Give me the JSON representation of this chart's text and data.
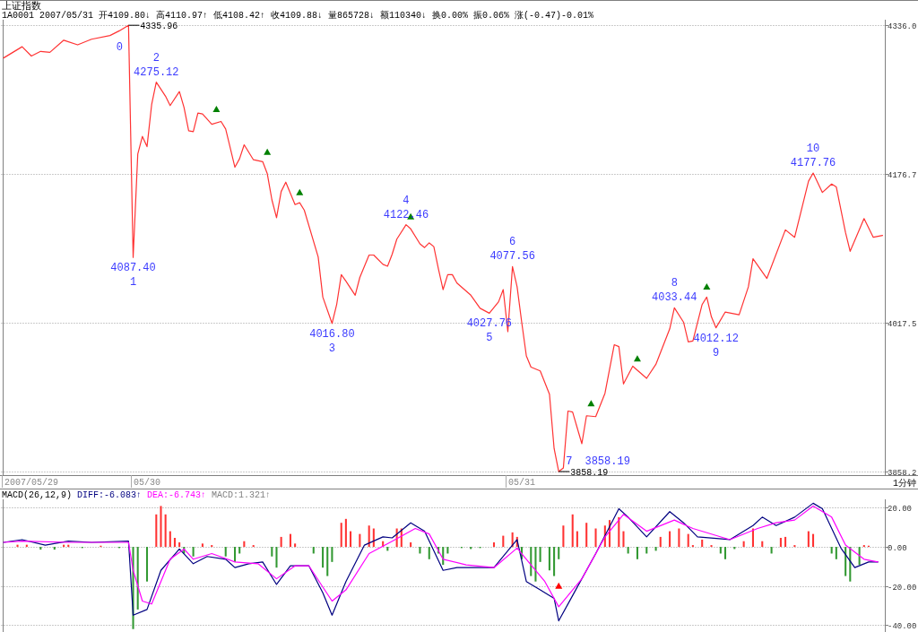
{
  "chart_data": [
    {
      "type": "line",
      "title": "上证指数",
      "subtitle": "1A0001 2007/05/31 开4109.80↓ 高4110.97↑ 低4108.42↑ 收4109.88↓ 量865728↓ 额110340↓ 换0.00% 振0.06% 涨(-0.47)-0.01%",
      "grid": "y",
      "ylim": [
        3854.4,
        4341.9
      ],
      "categories": [
        null,
        null,
        null,
        null,
        null,
        null,
        "2007/05/29",
        null,
        null,
        null,
        null,
        null,
        null,
        null,
        null,
        null,
        null,
        null,
        null,
        null,
        null,
        null,
        null,
        null,
        null,
        null,
        null,
        null,
        null,
        null,
        null,
        "05/30",
        null,
        null,
        null,
        null,
        null,
        null,
        null,
        null,
        null,
        null,
        null,
        null,
        null,
        null,
        null,
        null,
        null,
        null,
        null,
        null,
        null,
        null,
        null,
        null,
        null,
        null,
        null,
        null,
        null,
        null,
        null,
        null,
        null,
        null,
        null,
        null,
        null,
        null,
        null,
        null,
        null,
        null,
        null,
        null,
        null,
        null,
        null,
        null,
        null,
        null,
        null,
        null,
        null,
        null,
        null,
        null,
        null,
        null,
        null,
        null,
        null,
        null,
        null,
        null,
        null,
        null,
        null,
        null,
        null,
        null,
        null,
        null,
        null,
        null,
        null,
        null,
        null,
        null,
        null,
        null,
        "05/31",
        null,
        null,
        null,
        null,
        null,
        null,
        null,
        null,
        null,
        null,
        null,
        null,
        null,
        null,
        null,
        null,
        null,
        null,
        null,
        null,
        null,
        null,
        null,
        null,
        null,
        null,
        null,
        null,
        null,
        null,
        null,
        null,
        null,
        null,
        null,
        null,
        null,
        null,
        null,
        null,
        null,
        null,
        null,
        null,
        null,
        null,
        null,
        null,
        null,
        null,
        null,
        null,
        null,
        null,
        null,
        null,
        null,
        null,
        null,
        null,
        null,
        null,
        null,
        null,
        null,
        null,
        null,
        null,
        null,
        null,
        null,
        null,
        null,
        null,
        null,
        null,
        null,
        null
      ],
      "yticks": [
        {
          "value": 4336,
          "label": "4336.0"
        },
        {
          "value": 4176.7,
          "label": "4176.7"
        },
        {
          "value": 4017.5,
          "label": "4017.5"
        },
        {
          "value": 3858.2,
          "label": "3858.2"
        }
      ],
      "annotations": [
        "1分钟",
        "0",
        "1",
        "2",
        "3",
        "4",
        "5",
        "6",
        "7",
        "8",
        "9",
        "10",
        "3858.19"
      ],
      "series": [
        {
          "color": "#ff3333",
          "line_style": "solid",
          "values": [
            4301,
            null,
            null,
            null,
            4313,
            null,
            4303,
            null,
            4308,
            null,
            4307,
            null,
            null,
            4320,
            null,
            null,
            4315,
            null,
            null,
            4321,
            null,
            null,
            null,
            4325,
            null,
            4330,
            null,
            4335.96,
            4087.4,
            4198,
            4217,
            4206,
            4251,
            4275.12,
            null,
            4260,
            4250,
            null,
            4265,
            4248,
            4223,
            4222,
            4242,
            4241,
            null,
            4230,
            null,
            4233,
            4225,
            null,
            4184,
            4193,
            4208,
            null,
            4192,
            null,
            4190,
            4177,
            4149,
            4130,
            4158,
            4168,
            null,
            4144,
            4146,
            4138,
            null,
            null,
            4088,
            4045,
            null,
            4016.8,
            4037,
            4069,
            4062,
            null,
            4047,
            4066,
            null,
            4090,
            4090,
            null,
            4080,
            4078,
            4091,
            4107,
            null,
            4122.46,
            4118,
            null,
            4102,
            4098,
            4103,
            4099,
            4075,
            4053,
            4069,
            4069,
            4060,
            null,
            null,
            4047,
            null,
            4033,
            null,
            4027.76,
            null,
            4040,
            4053,
            4008,
            4077.56,
            4056,
            4018,
            3982,
            3970,
            null,
            3966,
            null,
            3941,
            3883,
            3858.19,
            3862,
            3923,
            3922,
            null,
            3888,
            3918,
            null,
            3917,
            null,
            3942,
            null,
            3994,
            3992,
            3952,
            null,
            3971,
            null,
            null,
            3958,
            null,
            3973,
            null,
            null,
            4011,
            4033.44,
            null,
            4018,
            3997,
            3998,
            null,
            4037,
            4045,
            4024,
            4012.12,
            null,
            4029,
            null,
            null,
            4026,
            null,
            4056,
            4086,
            null,
            null,
            4065,
            null,
            null,
            null,
            4117,
            null,
            4109,
            null,
            null,
            4169,
            4177.76,
            null,
            4157,
            null,
            4166,
            4163,
            null,
            4114,
            4094,
            null,
            null,
            4129,
            null,
            4109,
            null,
            4111
          ],
          "value_labels": [
            null,
            null,
            null,
            null,
            null,
            null,
            null,
            null,
            null,
            null,
            null,
            null,
            null,
            null,
            null,
            null,
            null,
            null,
            null,
            null,
            null,
            null,
            null,
            null,
            null,
            null,
            null,
            "4335.96",
            "4087.40",
            null,
            null,
            null,
            null,
            "4275.12",
            null,
            null,
            null,
            null,
            null,
            null,
            null,
            null,
            null,
            null,
            null,
            null,
            null,
            null,
            null,
            null,
            null,
            null,
            null,
            null,
            null,
            null,
            null,
            null,
            null,
            null,
            null,
            null,
            null,
            null,
            null,
            null,
            null,
            null,
            null,
            null,
            null,
            "4016.80",
            null,
            null,
            null,
            null,
            null,
            null,
            null,
            null,
            null,
            null,
            null,
            null,
            null,
            null,
            null,
            "4122.46",
            null,
            null,
            null,
            null,
            null,
            null,
            null,
            null,
            null,
            null,
            null,
            null,
            null,
            null,
            null,
            null,
            null,
            "4027.76",
            null,
            null,
            null,
            null,
            "4077.56",
            null,
            null,
            null,
            null,
            null,
            null,
            null,
            null,
            null,
            "3858.19",
            null,
            null,
            null,
            null,
            null,
            null,
            null,
            null,
            null,
            null,
            null,
            null,
            null,
            null,
            null,
            null,
            null,
            null,
            null,
            null,
            null,
            null,
            null,
            null,
            "4033.44",
            null,
            null,
            null,
            null,
            null,
            null,
            null,
            null,
            "4012.12",
            null,
            null,
            null,
            null,
            null,
            null,
            null,
            null,
            null,
            null,
            null,
            null,
            null,
            null,
            null,
            null,
            null,
            null,
            null,
            null,
            "4177.76",
            null,
            null,
            null,
            null,
            null,
            null,
            null,
            null,
            null,
            null,
            null,
            null,
            null,
            null,
            null
          ]
        },
        {
          "type": "scatter",
          "color": "#008000",
          "marker": "triangle",
          "values": [
            null,
            null,
            null,
            null,
            null,
            null,
            null,
            null,
            null,
            null,
            null,
            null,
            null,
            null,
            null,
            null,
            null,
            null,
            null,
            null,
            null,
            null,
            null,
            null,
            null,
            null,
            null,
            null,
            null,
            null,
            null,
            null,
            null,
            null,
            null,
            null,
            null,
            null,
            null,
            null,
            null,
            null,
            null,
            null,
            null,
            null,
            4246,
            null,
            null,
            null,
            null,
            null,
            null,
            null,
            null,
            null,
            null,
            4200,
            null,
            null,
            null,
            null,
            null,
            null,
            4157,
            null,
            null,
            null,
            null,
            null,
            null,
            null,
            null,
            null,
            null,
            null,
            null,
            null,
            null,
            null,
            null,
            null,
            null,
            null,
            null,
            null,
            null,
            null,
            4131,
            null,
            null,
            null,
            null,
            null,
            null,
            null,
            null,
            null,
            null,
            null,
            null,
            null,
            null,
            null,
            null,
            null,
            null,
            null,
            null,
            null,
            null,
            null,
            null,
            null,
            null,
            null,
            null,
            null,
            null,
            null,
            null,
            null,
            null,
            null,
            null,
            null,
            null,
            3931,
            null,
            null,
            null,
            null,
            null,
            null,
            null,
            null,
            null,
            3979,
            null,
            null,
            null,
            null,
            null,
            null,
            null,
            null,
            null,
            null,
            null,
            null,
            null,
            null,
            4056,
            null,
            null,
            null,
            null,
            null,
            null,
            null,
            null,
            null,
            null,
            null,
            null,
            null,
            null,
            null,
            null,
            null,
            null,
            null,
            null,
            null,
            null,
            null,
            null,
            null,
            null,
            null,
            null,
            null,
            null,
            null,
            null,
            null,
            null,
            null,
            null,
            null,
            null
          ]
        }
      ]
    },
    {
      "type": "bar",
      "title": "MACD(26,12,9)",
      "legend": "top left",
      "grid": "y",
      "tick_labels": "y",
      "ylim": [
        -43.5,
        24.3
      ],
      "categories": [
        null,
        null,
        null,
        null,
        null,
        null,
        null,
        null,
        null,
        null,
        null,
        null,
        null,
        null,
        null,
        null,
        null,
        null,
        null,
        null,
        null,
        null,
        null,
        null,
        null,
        null,
        null,
        null,
        null,
        null,
        null,
        null,
        null,
        null,
        null,
        null,
        null,
        null,
        null,
        null,
        null,
        null,
        null,
        null,
        null,
        null,
        null,
        null,
        null,
        null,
        null,
        null,
        null,
        null,
        null,
        null,
        null,
        null,
        null,
        null,
        null,
        null,
        null,
        null,
        null,
        null,
        null,
        null,
        null,
        null,
        null,
        null,
        null,
        null,
        null,
        null,
        null,
        null,
        null,
        null,
        null,
        null,
        null,
        null,
        null,
        null,
        null,
        null,
        null,
        null,
        null,
        null,
        null,
        null,
        null,
        null,
        null,
        null,
        null,
        null,
        null,
        null,
        null,
        null,
        null,
        null,
        null,
        null,
        null,
        null,
        null,
        null,
        null,
        null,
        null,
        null,
        null,
        null,
        null,
        null,
        null,
        null,
        null,
        null,
        null,
        null,
        null,
        null,
        null,
        null,
        null,
        null,
        null,
        null,
        null,
        null,
        null,
        null,
        null,
        null,
        null,
        null,
        null,
        null,
        null,
        null,
        null,
        null,
        null,
        null,
        null,
        null,
        null,
        null,
        null,
        null,
        null,
        null,
        null,
        null,
        null,
        null,
        null,
        null,
        null,
        null,
        null,
        null,
        null,
        null,
        null,
        null,
        null,
        null,
        null,
        null,
        null,
        null,
        null,
        null,
        null,
        null,
        null,
        null,
        null,
        null,
        null,
        null,
        null,
        null,
        null
      ],
      "yticks": [
        {
          "value": 20,
          "label": "20.00"
        },
        {
          "value": 0,
          "label": "0.00"
        },
        {
          "value": -20,
          "label": "-20.00"
        },
        {
          "value": -40,
          "label": "-40.00"
        }
      ],
      "annotations": [
        "MACD:1.321↑"
      ],
      "series": [
        {
          "color": "#ff3333",
          "values": [
            null,
            null,
            null,
            1.1,
            null,
            1.1,
            null,
            null,
            null,
            null,
            null,
            null,
            null,
            1.1,
            1.1,
            null,
            null,
            null,
            null,
            null,
            null,
            0.6,
            null,
            null,
            null,
            null,
            null,
            null,
            null,
            null,
            null,
            null,
            null,
            16.6,
            20.9,
            16.6,
            8,
            4.6,
            2.3,
            null,
            null,
            null,
            null,
            1.7,
            null,
            0.9,
            null,
            null,
            null,
            null,
            null,
            null,
            2.9,
            null,
            0.9,
            null,
            null,
            null,
            null,
            null,
            5.1,
            null,
            6.6,
            1.7,
            null,
            null,
            null,
            null,
            null,
            null,
            null,
            null,
            null,
            12.3,
            14.3,
            8,
            null,
            6.6,
            null,
            10.9,
            9.4,
            null,
            2.9,
            null,
            null,
            9.4,
            9.4,
            null,
            2.3,
            null,
            null,
            null,
            null,
            null,
            null,
            null,
            null,
            null,
            null,
            null,
            null,
            null,
            null,
            null,
            null,
            null,
            2.3,
            null,
            5.7,
            null,
            7.4,
            5.1,
            null,
            null,
            null,
            null,
            null,
            null,
            null,
            null,
            null,
            10.9,
            null,
            16.6,
            8,
            null,
            12.3,
            null,
            9.4,
            null,
            10.9,
            13.7,
            null,
            15.2,
            8,
            null,
            null,
            null,
            null,
            null,
            null,
            null,
            5.1,
            null,
            8,
            null,
            9.4,
            null,
            6.6,
            0.9,
            null,
            3.7,
            null,
            0.9,
            null,
            null,
            null,
            null,
            null,
            null,
            2.9,
            null,
            9.4,
            null,
            2.9,
            null,
            null,
            null,
            4.6,
            5.1,
            null,
            0.9,
            null,
            null,
            8,
            6.6,
            null,
            null,
            null,
            null,
            null,
            null,
            null,
            null,
            null,
            null,
            0.9,
            0.6,
            null,
            null,
            null
          ]
        },
        {
          "color": "#339933",
          "values": [
            null,
            null,
            null,
            null,
            null,
            null,
            null,
            null,
            -1.4,
            null,
            null,
            -1.4,
            null,
            null,
            null,
            null,
            null,
            -0.6,
            null,
            null,
            null,
            null,
            null,
            null,
            null,
            -0.6,
            null,
            null,
            -42,
            -32,
            null,
            -17.7,
            null,
            null,
            null,
            null,
            null,
            null,
            null,
            -3.4,
            null,
            -4.9,
            null,
            null,
            null,
            null,
            null,
            null,
            -4.9,
            null,
            -7.7,
            -3.4,
            null,
            null,
            null,
            null,
            null,
            null,
            -4.9,
            -10.6,
            null,
            null,
            null,
            null,
            null,
            null,
            null,
            -3.4,
            null,
            -10.6,
            -14.9,
            -7.7,
            null,
            null,
            null,
            null,
            null,
            null,
            null,
            null,
            null,
            null,
            null,
            -2,
            null,
            null,
            null,
            null,
            null,
            null,
            -3.4,
            null,
            -6.3,
            null,
            -3.4,
            -9.2,
            -3.4,
            null,
            null,
            -0.6,
            null,
            -1.1,
            null,
            -0.6,
            null,
            null,
            null,
            null,
            null,
            null,
            null,
            null,
            -6.3,
            null,
            -14.9,
            -17.7,
            -7.7,
            null,
            -12,
            -14.9,
            -6.3,
            null,
            null,
            null,
            null,
            null,
            null,
            null,
            null,
            null,
            null,
            null,
            null,
            null,
            null,
            -3.4,
            null,
            -6.3,
            null,
            -3.4,
            null,
            -2,
            null,
            null,
            null,
            null,
            null,
            null,
            null,
            null,
            null,
            null,
            null,
            null,
            null,
            -3.4,
            -6.3,
            null,
            -1.1,
            null,
            null,
            null,
            null,
            null,
            null,
            null,
            -3.4,
            null,
            null,
            null,
            null,
            null,
            null,
            null,
            null,
            null,
            null,
            null,
            null,
            -3.4,
            -6.3,
            null,
            -14.9,
            -17.7,
            null,
            -9.2,
            null,
            null,
            null,
            null,
            null
          ]
        },
        {
          "type": "line",
          "name": "DIFF:-6.083↑",
          "color": "#000080",
          "values": [
            2.3,
            null,
            null,
            null,
            3.7,
            null,
            null,
            null,
            null,
            0.9,
            null,
            null,
            null,
            null,
            2.9,
            null,
            null,
            null,
            null,
            2.3,
            null,
            null,
            null,
            null,
            null,
            null,
            null,
            2.9,
            -34.9,
            null,
            null,
            -32,
            null,
            null,
            -12,
            null,
            null,
            null,
            -1.1,
            null,
            null,
            -8.6,
            null,
            null,
            -4.9,
            null,
            null,
            null,
            -6.3,
            null,
            -10.6,
            null,
            null,
            -8.6,
            null,
            null,
            -7.7,
            null,
            null,
            -19.2,
            null,
            null,
            -9.7,
            null,
            null,
            null,
            -9.7,
            null,
            null,
            -23.5,
            null,
            -34.9,
            null,
            null,
            -17.7,
            null,
            null,
            null,
            0.9,
            null,
            null,
            null,
            5.1,
            null,
            4.6,
            null,
            null,
            null,
            12.3,
            null,
            null,
            8,
            null,
            null,
            null,
            -12,
            null,
            null,
            -10.6,
            null,
            null,
            null,
            null,
            null,
            null,
            null,
            -10.6,
            null,
            null,
            null,
            null,
            3.7,
            null,
            -17.7,
            null,
            null,
            -22,
            null,
            null,
            -26.3,
            -37.8,
            null,
            null,
            -24.9,
            null,
            null,
            null,
            null,
            -3.4,
            null,
            null,
            null,
            null,
            19.5,
            null,
            15.2,
            null,
            null,
            null,
            5.1,
            null,
            null,
            null,
            null,
            18,
            null,
            null,
            12.3,
            null,
            null,
            5.1,
            null,
            null,
            null,
            null,
            null,
            null,
            3.7,
            null,
            null,
            null,
            null,
            10.9,
            null,
            15.2,
            null,
            null,
            10.9,
            null,
            null,
            null,
            15.2,
            null,
            null,
            null,
            22.3,
            null,
            19.5,
            null,
            null,
            null,
            -0.6,
            null,
            null,
            -10.6,
            null,
            null,
            -7.7,
            null,
            -7.7,
            null
          ]
        },
        {
          "type": "line",
          "name": "DEA:-6.743↑",
          "color": "#ff00ff",
          "values": [
            2.3,
            null,
            null,
            null,
            2.9,
            null,
            null,
            null,
            null,
            null,
            null,
            null,
            null,
            null,
            2.3,
            null,
            null,
            null,
            null,
            null,
            null,
            null,
            null,
            null,
            null,
            null,
            null,
            2.3,
            -12,
            null,
            -27.7,
            null,
            -29.2,
            null,
            null,
            null,
            -6.3,
            null,
            null,
            -1.1,
            null,
            -6.3,
            null,
            null,
            null,
            -3.4,
            null,
            null,
            null,
            null,
            -7.7,
            null,
            null,
            null,
            null,
            -8.6,
            null,
            null,
            null,
            -16.3,
            null,
            null,
            null,
            -9.7,
            null,
            null,
            -9.7,
            null,
            null,
            null,
            null,
            -27.7,
            null,
            null,
            -22,
            null,
            null,
            null,
            null,
            -3.4,
            null,
            null,
            null,
            null,
            2.9,
            null,
            null,
            null,
            null,
            9.4,
            null,
            null,
            6.6,
            null,
            null,
            -6.3,
            null,
            null,
            null,
            null,
            -9.2,
            null,
            null,
            null,
            null,
            null,
            -10.6,
            null,
            null,
            null,
            null,
            -0.6,
            null,
            null,
            -9.2,
            null,
            null,
            -17.7,
            null,
            null,
            -30.6,
            null,
            null,
            null,
            null,
            -16.3,
            null,
            null,
            null,
            null,
            5.1,
            null,
            null,
            null,
            16.6,
            null,
            null,
            null,
            null,
            8,
            null,
            null,
            null,
            null,
            null,
            13.7,
            null,
            null,
            null,
            9.4,
            null,
            null,
            null,
            null,
            null,
            null,
            null,
            3.7,
            null,
            null,
            null,
            null,
            null,
            9.4,
            null,
            null,
            null,
            12.3,
            null,
            null,
            null,
            13.7,
            null,
            null,
            null,
            20.9,
            null,
            null,
            null,
            15.2,
            null,
            null,
            0.9,
            null,
            null,
            null,
            -6.3,
            null,
            null,
            -7.7,
            null
          ]
        },
        {
          "type": "scatter",
          "color": "#ff0000",
          "marker": "triangle",
          "values": [
            null,
            null,
            null,
            null,
            null,
            null,
            null,
            null,
            null,
            null,
            null,
            null,
            null,
            null,
            null,
            null,
            null,
            null,
            null,
            null,
            null,
            null,
            null,
            null,
            null,
            null,
            null,
            null,
            null,
            null,
            null,
            null,
            null,
            null,
            null,
            null,
            null,
            null,
            null,
            null,
            null,
            null,
            null,
            null,
            null,
            null,
            null,
            null,
            null,
            null,
            null,
            null,
            null,
            null,
            null,
            null,
            null,
            null,
            null,
            null,
            null,
            null,
            null,
            null,
            null,
            null,
            null,
            null,
            null,
            null,
            null,
            null,
            null,
            null,
            null,
            null,
            null,
            null,
            null,
            null,
            null,
            null,
            null,
            null,
            null,
            null,
            null,
            null,
            null,
            null,
            null,
            null,
            null,
            null,
            null,
            null,
            null,
            null,
            null,
            null,
            null,
            null,
            null,
            null,
            null,
            null,
            null,
            null,
            null,
            null,
            null,
            null,
            null,
            null,
            null,
            null,
            null,
            null,
            null,
            null,
            -20,
            null,
            null,
            null,
            null,
            null,
            null,
            null,
            null,
            null,
            null,
            null,
            null,
            null,
            null,
            null,
            null,
            null,
            null,
            null,
            null,
            null,
            null,
            null,
            null,
            null,
            null,
            null,
            null,
            null,
            null,
            null,
            null,
            null,
            null,
            null,
            null,
            null,
            null,
            null,
            null,
            null,
            null,
            null,
            null,
            null,
            null,
            null,
            null,
            null,
            null,
            null,
            null,
            null,
            null,
            null,
            null,
            null,
            null,
            null,
            null,
            null,
            null,
            null,
            null,
            null,
            null,
            null,
            null,
            null,
            null
          ]
        }
      ]
    }
  ]
}
